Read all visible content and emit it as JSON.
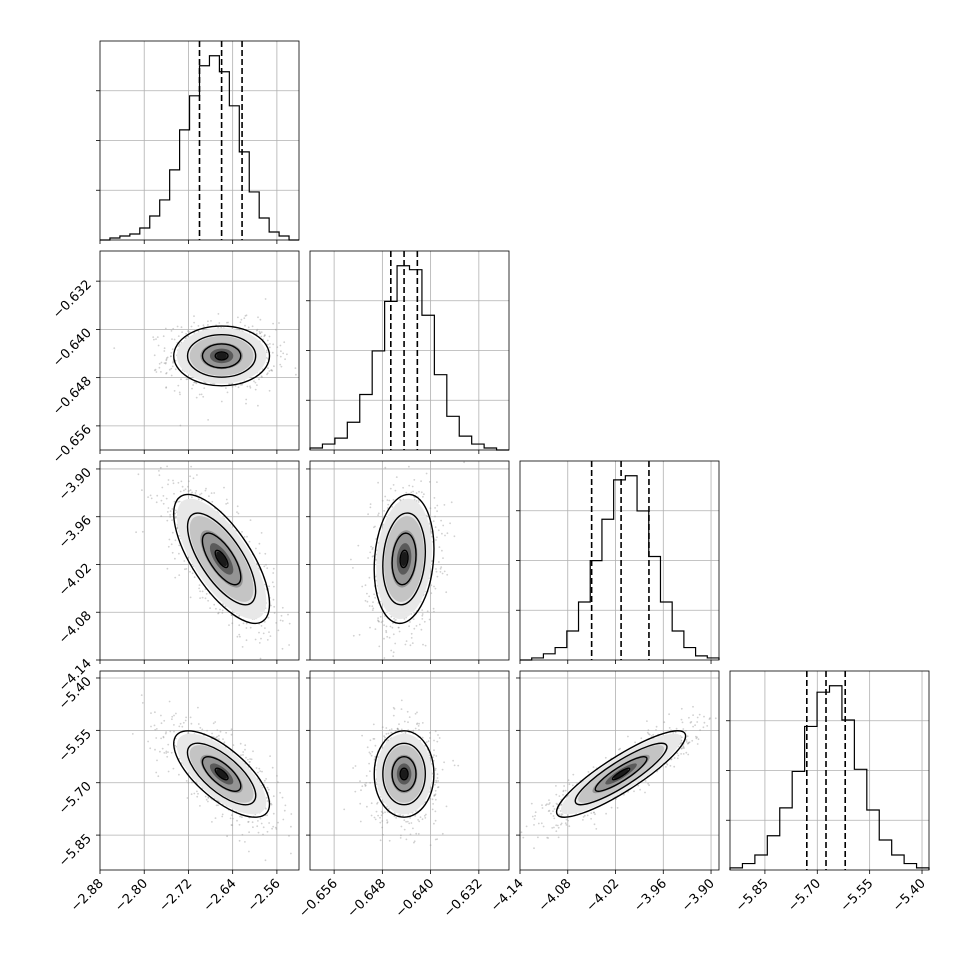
{
  "chart_data": {
    "type": "corner",
    "grid": true,
    "parameters": [
      {
        "index": 0,
        "range": [
          -2.88,
          -2.52
        ],
        "ticks": [
          -2.88,
          -2.8,
          -2.72,
          -2.64,
          -2.56
        ],
        "tick_labels": [
          "−2.88",
          "−2.80",
          "−2.72",
          "−2.64",
          "−2.56"
        ],
        "quantiles": [
          -2.7,
          -2.66,
          -2.623
        ],
        "hist": [
          0,
          1,
          2,
          3,
          6,
          12,
          20,
          35,
          55,
          72,
          87,
          92,
          84,
          67,
          44,
          24,
          11,
          4,
          2,
          0
        ]
      },
      {
        "index": 1,
        "range": [
          -0.66,
          -0.627
        ],
        "ticks": [
          -0.656,
          -0.648,
          -0.64,
          -0.632
        ],
        "tick_labels": [
          "−0.656",
          "−0.648",
          "−0.640",
          "−0.632"
        ],
        "quantiles": [
          -0.6466,
          -0.6444,
          -0.6422
        ],
        "hist": [
          1,
          3,
          6,
          14,
          28,
          50,
          75,
          93,
          91,
          68,
          38,
          17,
          7,
          3,
          1,
          0
        ]
      },
      {
        "index": 2,
        "range": [
          -4.14,
          -3.89
        ],
        "ticks": [
          -4.14,
          -4.08,
          -4.02,
          -3.96,
          -3.9
        ],
        "tick_labels": [
          "−4.14",
          "−4.08",
          "−4.02",
          "−3.96",
          "−3.90"
        ],
        "quantiles": [
          -4.05,
          -4.013,
          -3.978
        ],
        "hist": [
          0,
          1,
          3,
          6,
          14,
          28,
          48,
          68,
          87,
          89,
          72,
          50,
          28,
          14,
          6,
          2,
          1
        ]
      },
      {
        "index": 3,
        "range": [
          -5.95,
          -5.38
        ],
        "ticks": [
          -5.85,
          -5.7,
          -5.55,
          -5.4
        ],
        "tick_labels": [
          "−5.85",
          "−5.70",
          "−5.55",
          "−5.40"
        ],
        "quantiles": [
          -5.73,
          -5.675,
          -5.62
        ],
        "hist": [
          1,
          3,
          7,
          16,
          29,
          46,
          67,
          83,
          86,
          70,
          47,
          28,
          14,
          7,
          3,
          1
        ]
      }
    ],
    "correlations": {
      "1_0": 0.0,
      "2_0": -0.7,
      "2_1": 0.15,
      "3_0": -0.7,
      "3_1": 0.0,
      "3_2": 0.88
    },
    "y_ticks": {
      "1": [
        "−0.632",
        "−0.640",
        "−0.648",
        "−0.656"
      ],
      "2": [
        "−3.90",
        "−3.96",
        "−4.02",
        "−4.08",
        "−4.14"
      ],
      "3": [
        "−5.40",
        "−5.55",
        "−5.70",
        "−5.85"
      ]
    }
  }
}
